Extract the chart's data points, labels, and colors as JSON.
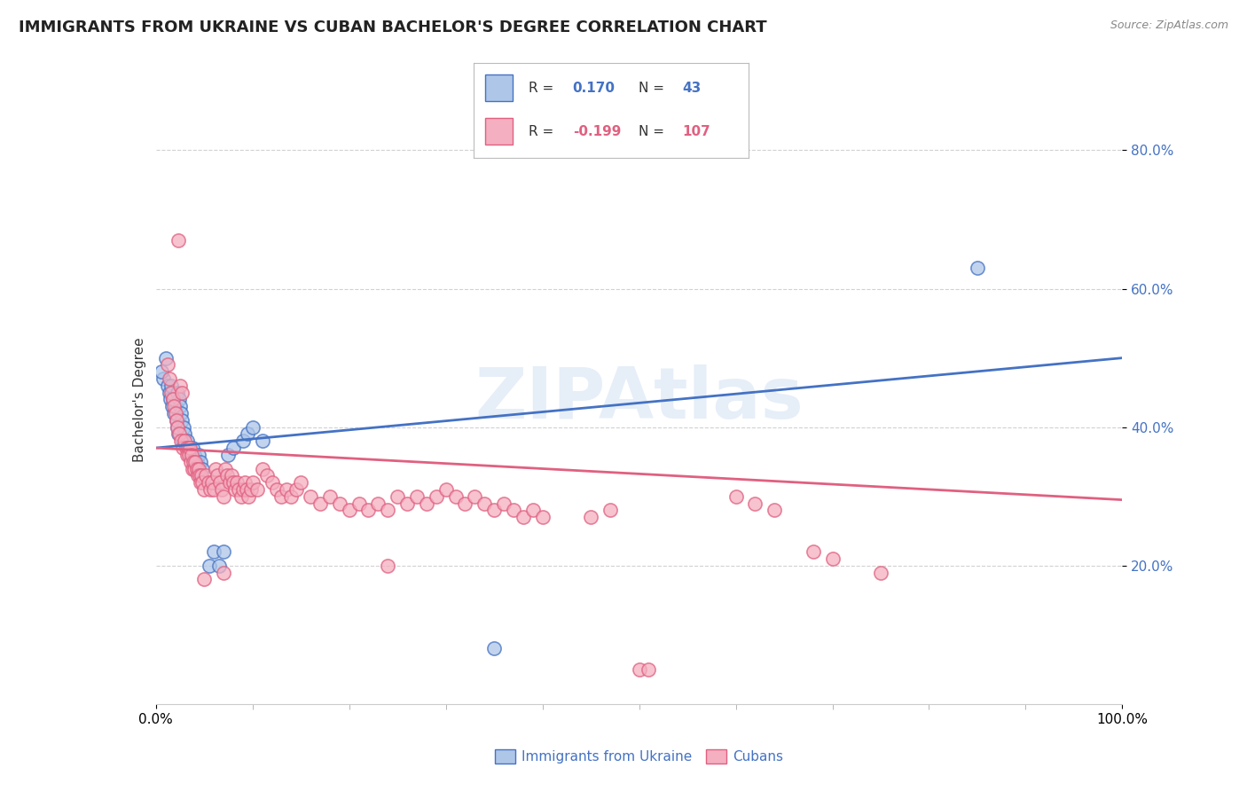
{
  "title": "IMMIGRANTS FROM UKRAINE VS CUBAN BACHELOR'S DEGREE CORRELATION CHART",
  "source": "Source: ZipAtlas.com",
  "ylabel": "Bachelor's Degree",
  "watermark": "ZIPAtlas",
  "ukraine_R": 0.17,
  "ukraine_N": 43,
  "cuba_R": -0.199,
  "cuba_N": 107,
  "ukraine_color": "#aec6e8",
  "cuba_color": "#f4afc0",
  "ukraine_line_color": "#4472c4",
  "cuba_line_color": "#e06080",
  "ukraine_scatter": [
    [
      0.008,
      0.47
    ],
    [
      0.01,
      0.5
    ],
    [
      0.012,
      0.46
    ],
    [
      0.014,
      0.45
    ],
    [
      0.015,
      0.44
    ],
    [
      0.016,
      0.46
    ],
    [
      0.017,
      0.43
    ],
    [
      0.018,
      0.44
    ],
    [
      0.019,
      0.42
    ],
    [
      0.02,
      0.43
    ],
    [
      0.021,
      0.41
    ],
    [
      0.022,
      0.4
    ],
    [
      0.022,
      0.45
    ],
    [
      0.023,
      0.39
    ],
    [
      0.024,
      0.44
    ],
    [
      0.025,
      0.43
    ],
    [
      0.026,
      0.42
    ],
    [
      0.027,
      0.41
    ],
    [
      0.028,
      0.38
    ],
    [
      0.029,
      0.4
    ],
    [
      0.03,
      0.39
    ],
    [
      0.032,
      0.38
    ],
    [
      0.034,
      0.37
    ],
    [
      0.036,
      0.36
    ],
    [
      0.038,
      0.37
    ],
    [
      0.04,
      0.36
    ],
    [
      0.042,
      0.35
    ],
    [
      0.044,
      0.36
    ],
    [
      0.046,
      0.35
    ],
    [
      0.048,
      0.34
    ],
    [
      0.055,
      0.2
    ],
    [
      0.06,
      0.22
    ],
    [
      0.065,
      0.2
    ],
    [
      0.07,
      0.22
    ],
    [
      0.075,
      0.36
    ],
    [
      0.08,
      0.37
    ],
    [
      0.09,
      0.38
    ],
    [
      0.095,
      0.39
    ],
    [
      0.1,
      0.4
    ],
    [
      0.11,
      0.38
    ],
    [
      0.006,
      0.48
    ],
    [
      0.85,
      0.63
    ],
    [
      0.35,
      0.08
    ]
  ],
  "cuba_scatter": [
    [
      0.012,
      0.49
    ],
    [
      0.014,
      0.47
    ],
    [
      0.016,
      0.45
    ],
    [
      0.018,
      0.44
    ],
    [
      0.019,
      0.43
    ],
    [
      0.02,
      0.42
    ],
    [
      0.021,
      0.41
    ],
    [
      0.022,
      0.4
    ],
    [
      0.023,
      0.67
    ],
    [
      0.024,
      0.39
    ],
    [
      0.025,
      0.46
    ],
    [
      0.026,
      0.38
    ],
    [
      0.027,
      0.45
    ],
    [
      0.028,
      0.37
    ],
    [
      0.03,
      0.38
    ],
    [
      0.031,
      0.37
    ],
    [
      0.032,
      0.36
    ],
    [
      0.033,
      0.37
    ],
    [
      0.034,
      0.36
    ],
    [
      0.035,
      0.37
    ],
    [
      0.036,
      0.35
    ],
    [
      0.037,
      0.36
    ],
    [
      0.038,
      0.34
    ],
    [
      0.039,
      0.35
    ],
    [
      0.04,
      0.34
    ],
    [
      0.041,
      0.35
    ],
    [
      0.042,
      0.34
    ],
    [
      0.043,
      0.33
    ],
    [
      0.044,
      0.34
    ],
    [
      0.045,
      0.33
    ],
    [
      0.046,
      0.32
    ],
    [
      0.047,
      0.33
    ],
    [
      0.048,
      0.32
    ],
    [
      0.05,
      0.31
    ],
    [
      0.052,
      0.33
    ],
    [
      0.054,
      0.32
    ],
    [
      0.056,
      0.31
    ],
    [
      0.058,
      0.32
    ],
    [
      0.06,
      0.31
    ],
    [
      0.062,
      0.34
    ],
    [
      0.064,
      0.33
    ],
    [
      0.066,
      0.32
    ],
    [
      0.068,
      0.31
    ],
    [
      0.07,
      0.3
    ],
    [
      0.072,
      0.34
    ],
    [
      0.074,
      0.33
    ],
    [
      0.076,
      0.32
    ],
    [
      0.078,
      0.33
    ],
    [
      0.08,
      0.32
    ],
    [
      0.082,
      0.31
    ],
    [
      0.084,
      0.32
    ],
    [
      0.086,
      0.31
    ],
    [
      0.088,
      0.3
    ],
    [
      0.09,
      0.31
    ],
    [
      0.092,
      0.32
    ],
    [
      0.094,
      0.31
    ],
    [
      0.096,
      0.3
    ],
    [
      0.098,
      0.31
    ],
    [
      0.1,
      0.32
    ],
    [
      0.105,
      0.31
    ],
    [
      0.11,
      0.34
    ],
    [
      0.115,
      0.33
    ],
    [
      0.12,
      0.32
    ],
    [
      0.125,
      0.31
    ],
    [
      0.13,
      0.3
    ],
    [
      0.135,
      0.31
    ],
    [
      0.14,
      0.3
    ],
    [
      0.145,
      0.31
    ],
    [
      0.15,
      0.32
    ],
    [
      0.16,
      0.3
    ],
    [
      0.17,
      0.29
    ],
    [
      0.18,
      0.3
    ],
    [
      0.19,
      0.29
    ],
    [
      0.2,
      0.28
    ],
    [
      0.21,
      0.29
    ],
    [
      0.22,
      0.28
    ],
    [
      0.23,
      0.29
    ],
    [
      0.24,
      0.28
    ],
    [
      0.25,
      0.3
    ],
    [
      0.26,
      0.29
    ],
    [
      0.27,
      0.3
    ],
    [
      0.28,
      0.29
    ],
    [
      0.29,
      0.3
    ],
    [
      0.3,
      0.31
    ],
    [
      0.31,
      0.3
    ],
    [
      0.32,
      0.29
    ],
    [
      0.33,
      0.3
    ],
    [
      0.34,
      0.29
    ],
    [
      0.35,
      0.28
    ],
    [
      0.36,
      0.29
    ],
    [
      0.37,
      0.28
    ],
    [
      0.38,
      0.27
    ],
    [
      0.39,
      0.28
    ],
    [
      0.4,
      0.27
    ],
    [
      0.05,
      0.18
    ],
    [
      0.07,
      0.19
    ],
    [
      0.5,
      0.05
    ],
    [
      0.51,
      0.05
    ],
    [
      0.24,
      0.2
    ],
    [
      0.7,
      0.21
    ],
    [
      0.75,
      0.19
    ],
    [
      0.68,
      0.22
    ],
    [
      0.6,
      0.3
    ],
    [
      0.62,
      0.29
    ],
    [
      0.64,
      0.28
    ],
    [
      0.45,
      0.27
    ],
    [
      0.47,
      0.28
    ]
  ],
  "xlim": [
    0,
    1.0
  ],
  "ylim": [
    0.0,
    0.88
  ],
  "yticks": [
    0.2,
    0.4,
    0.6,
    0.8
  ],
  "ytick_labels": [
    "20.0%",
    "40.0%",
    "60.0%",
    "80.0%"
  ],
  "xtick_left_label": "0.0%",
  "xtick_right_label": "100.0%",
  "title_fontsize": 13,
  "label_fontsize": 11,
  "tick_fontsize": 11
}
